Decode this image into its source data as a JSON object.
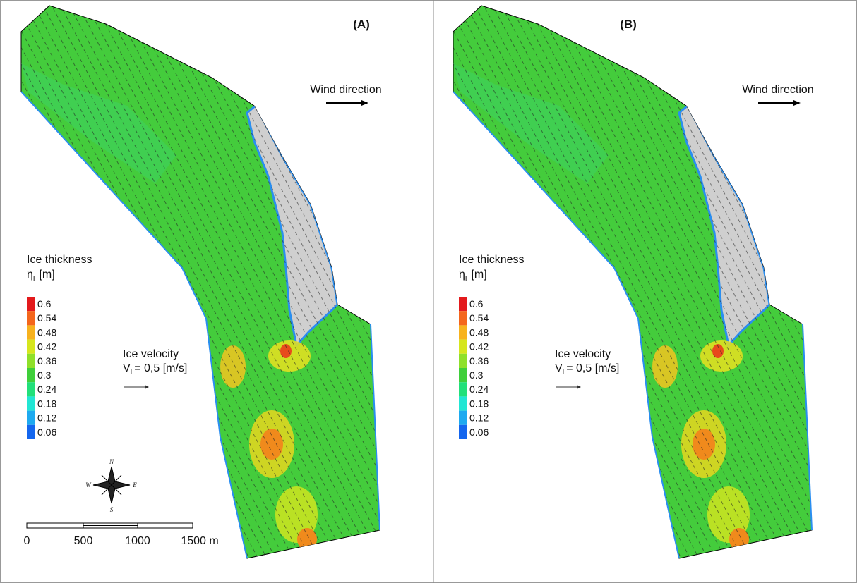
{
  "panels": [
    {
      "label": "(A)",
      "wind_label": "Wind direction",
      "legend": {
        "title": "Ice thickness",
        "symbol": "η",
        "subscript": "L",
        "unit": "[m]",
        "items": [
          {
            "label": "0.6",
            "color": "#e31a1c"
          },
          {
            "label": "0.54",
            "color": "#f4661c"
          },
          {
            "label": "0.48",
            "color": "#f7b21e"
          },
          {
            "label": "0.42",
            "color": "#d6e61e"
          },
          {
            "label": "0.36",
            "color": "#8fe02a"
          },
          {
            "label": "0.3",
            "color": "#3fcf3a"
          },
          {
            "label": "0.24",
            "color": "#22e07a"
          },
          {
            "label": "0.18",
            "color": "#22e6d4"
          },
          {
            "label": "0.12",
            "color": "#1eaaf0"
          },
          {
            "label": "0.06",
            "color": "#1466ee"
          }
        ]
      },
      "velocity": {
        "title": "Ice velocity",
        "symbol": "V",
        "subscript": "L",
        "value": "= 0,5 [m/s]"
      }
    },
    {
      "label": "(B)",
      "wind_label": "Wind direction",
      "legend": {
        "title": "Ice thickness",
        "symbol": "η",
        "subscript": "L",
        "unit": "[m]",
        "items": [
          {
            "label": "0.6",
            "color": "#e31a1c"
          },
          {
            "label": "0.54",
            "color": "#f4661c"
          },
          {
            "label": "0.48",
            "color": "#f7b21e"
          },
          {
            "label": "0.42",
            "color": "#d6e61e"
          },
          {
            "label": "0.36",
            "color": "#8fe02a"
          },
          {
            "label": "0.3",
            "color": "#3fcf3a"
          },
          {
            "label": "0.24",
            "color": "#22e07a"
          },
          {
            "label": "0.18",
            "color": "#22e6d4"
          },
          {
            "label": "0.12",
            "color": "#1eaaf0"
          },
          {
            "label": "0.06",
            "color": "#1466ee"
          }
        ]
      },
      "velocity": {
        "title": "Ice velocity",
        "symbol": "V",
        "subscript": "L",
        "value": "= 0,5 [m/s]"
      }
    }
  ],
  "compass": {
    "north": "N",
    "east": "E",
    "south": "S",
    "west": "W"
  },
  "scale_bar": {
    "labels": [
      "0",
      "500",
      "1000",
      "1500 m"
    ]
  }
}
